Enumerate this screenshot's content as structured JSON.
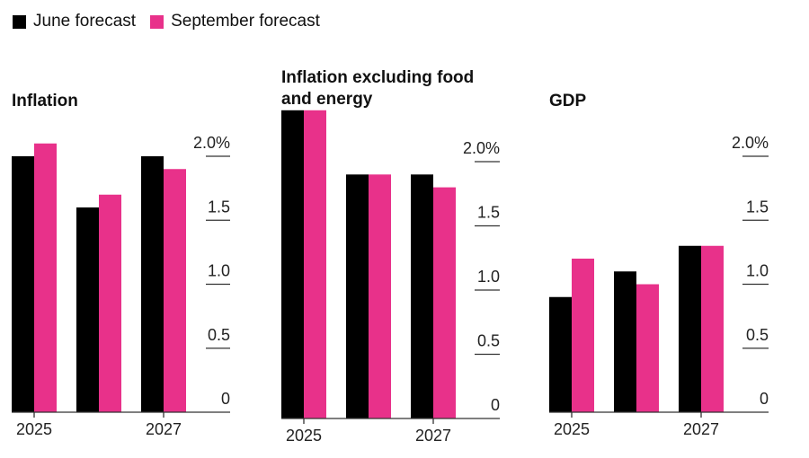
{
  "legend": [
    {
      "label": "June forecast",
      "color": "#000000"
    },
    {
      "label": "September forecast",
      "color": "#E8318A"
    }
  ],
  "chart_data": [
    {
      "type": "bar",
      "title": [
        "Inflation"
      ],
      "categories": [
        "2025",
        "2026",
        "2027"
      ],
      "xtick_labels": [
        "2025",
        "",
        "2027"
      ],
      "series": [
        {
          "name": "June forecast",
          "values": [
            2.0,
            1.6,
            2.0
          ]
        },
        {
          "name": "September forecast",
          "values": [
            2.1,
            1.7,
            1.9
          ]
        }
      ],
      "yticks": [
        "0",
        "0.5",
        "1.0",
        "1.5",
        "2.0%"
      ],
      "ylim": [
        0,
        2.0
      ],
      "ylabel": "",
      "xlabel": ""
    },
    {
      "type": "bar",
      "title": [
        "Inflation excluding food",
        "and energy"
      ],
      "categories": [
        "2025",
        "2026",
        "2027"
      ],
      "xtick_labels": [
        "2025",
        "",
        "2027"
      ],
      "series": [
        {
          "name": "June forecast",
          "values": [
            2.4,
            1.9,
            1.9
          ]
        },
        {
          "name": "September forecast",
          "values": [
            2.4,
            1.9,
            1.8
          ]
        }
      ],
      "yticks": [
        "0",
        "0.5",
        "1.0",
        "1.5",
        "2.0%"
      ],
      "ylim": [
        0,
        2.0
      ],
      "ylabel": "",
      "xlabel": ""
    },
    {
      "type": "bar",
      "title": [
        "GDP"
      ],
      "categories": [
        "2025",
        "2026",
        "2027"
      ],
      "xtick_labels": [
        "2025",
        "",
        "2027"
      ],
      "series": [
        {
          "name": "June forecast",
          "values": [
            0.9,
            1.1,
            1.3
          ]
        },
        {
          "name": "September forecast",
          "values": [
            1.2,
            1.0,
            1.3
          ]
        }
      ],
      "yticks": [
        "0",
        "0.5",
        "1.0",
        "1.5",
        "2.0%"
      ],
      "ylim": [
        0,
        2.0
      ],
      "ylabel": "",
      "xlabel": ""
    }
  ]
}
